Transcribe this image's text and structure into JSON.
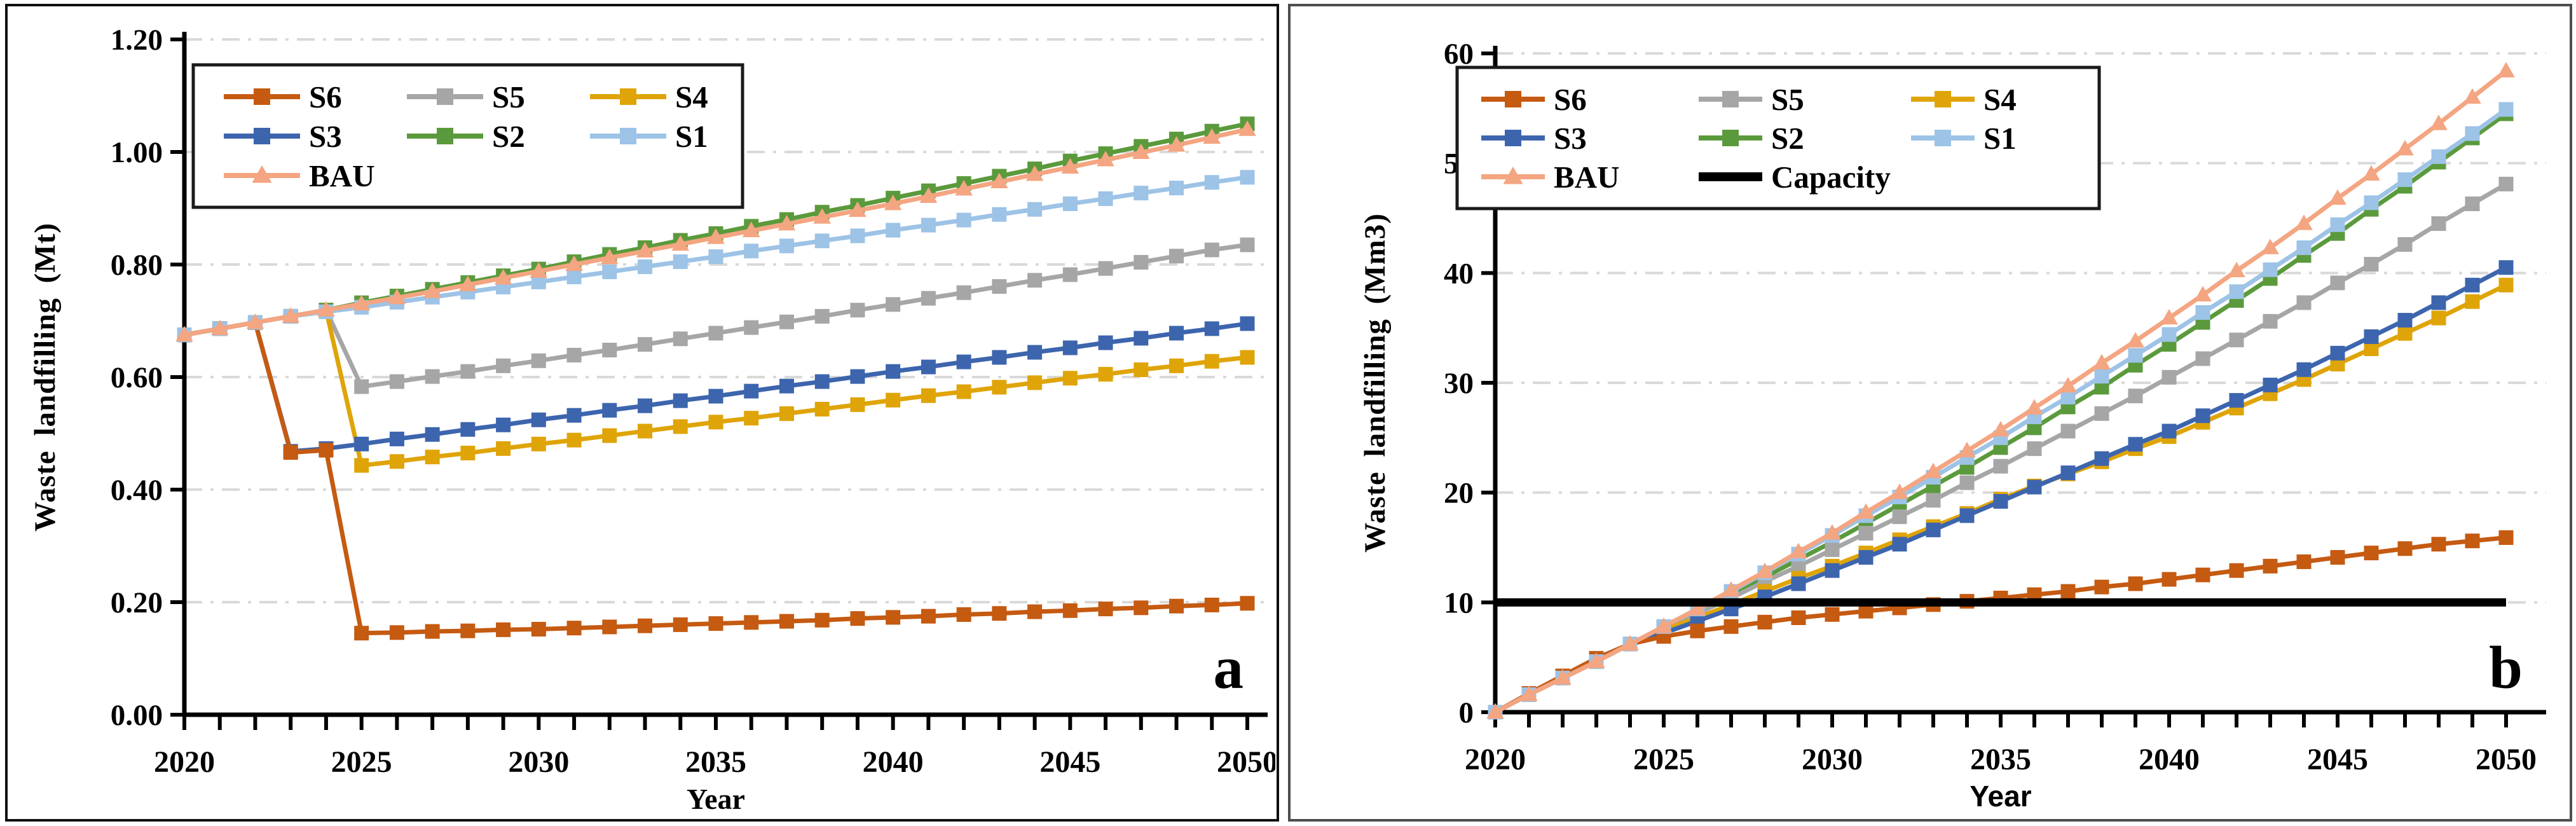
{
  "figure": {
    "background": "#ffffff",
    "grid_color": "#d9d9d9",
    "axis_color": "#000000"
  },
  "chart_data": [
    {
      "panel_label": "a",
      "type": "line",
      "xlabel": "Year",
      "ylabel": "Waste landfilling  (Mt)",
      "xlim": [
        2020,
        2050
      ],
      "ylim": [
        0,
        1.2
      ],
      "xticks_major": [
        2020,
        2025,
        2030,
        2035,
        2040,
        2045,
        2050
      ],
      "xtick_minor_step": 1,
      "yticks": [
        0,
        0.2,
        0.4,
        0.6,
        0.8,
        1.0,
        1.2
      ],
      "ytick_labels": [
        "0.00",
        "0.20",
        "0.40",
        "0.60",
        "0.80",
        "1.00",
        "1.20"
      ],
      "grid": "horizontal dash-dot",
      "legend_position": "top-left",
      "legend_columns": 3,
      "x": [
        2020,
        2021,
        2022,
        2023,
        2024,
        2025,
        2026,
        2027,
        2028,
        2029,
        2030,
        2031,
        2032,
        2033,
        2034,
        2035,
        2036,
        2037,
        2038,
        2039,
        2040,
        2041,
        2042,
        2043,
        2044,
        2045,
        2046,
        2047,
        2048,
        2049,
        2050
      ],
      "series": [
        {
          "name": "S6",
          "color": "#C55A11",
          "marker": "square",
          "values": [
            0.675,
            0.686,
            0.697,
            0.466,
            0.47,
            0.145,
            0.146,
            0.148,
            0.149,
            0.151,
            0.152,
            0.154,
            0.156,
            0.158,
            0.16,
            0.162,
            0.164,
            0.166,
            0.168,
            0.171,
            0.173,
            0.175,
            0.178,
            0.18,
            0.183,
            0.185,
            0.188,
            0.19,
            0.193,
            0.195,
            0.198
          ]
        },
        {
          "name": "S5",
          "color": "#A6A6A6",
          "marker": "square",
          "values": [
            0.675,
            0.686,
            0.697,
            0.708,
            0.719,
            0.583,
            0.592,
            0.601,
            0.61,
            0.62,
            0.629,
            0.639,
            0.648,
            0.658,
            0.668,
            0.678,
            0.688,
            0.698,
            0.708,
            0.719,
            0.729,
            0.74,
            0.75,
            0.761,
            0.772,
            0.782,
            0.793,
            0.804,
            0.815,
            0.826,
            0.835
          ]
        },
        {
          "name": "S4",
          "color": "#DFA408",
          "marker": "square",
          "values": [
            0.675,
            0.686,
            0.697,
            0.708,
            0.719,
            0.443,
            0.45,
            0.458,
            0.465,
            0.473,
            0.481,
            0.488,
            0.496,
            0.504,
            0.512,
            0.52,
            0.527,
            0.535,
            0.543,
            0.551,
            0.559,
            0.567,
            0.574,
            0.582,
            0.59,
            0.598,
            0.605,
            0.613,
            0.62,
            0.628,
            0.635
          ]
        },
        {
          "name": "S3",
          "color": "#3D65AE",
          "marker": "square",
          "values": [
            0.675,
            0.686,
            0.697,
            0.468,
            0.473,
            0.481,
            0.49,
            0.498,
            0.507,
            0.515,
            0.524,
            0.532,
            0.541,
            0.549,
            0.558,
            0.566,
            0.575,
            0.584,
            0.592,
            0.601,
            0.61,
            0.618,
            0.627,
            0.635,
            0.644,
            0.652,
            0.661,
            0.669,
            0.678,
            0.686,
            0.695
          ]
        },
        {
          "name": "S2",
          "color": "#5B9A3C",
          "marker": "square",
          "values": [
            0.675,
            0.686,
            0.697,
            0.708,
            0.719,
            0.732,
            0.744,
            0.756,
            0.768,
            0.78,
            0.792,
            0.805,
            0.818,
            0.83,
            0.843,
            0.855,
            0.868,
            0.88,
            0.893,
            0.905,
            0.918,
            0.931,
            0.944,
            0.957,
            0.97,
            0.984,
            0.997,
            1.01,
            1.023,
            1.037,
            1.05
          ]
        },
        {
          "name": "S1",
          "color": "#9DC3E6",
          "marker": "square",
          "values": [
            0.675,
            0.686,
            0.697,
            0.708,
            0.716,
            0.724,
            0.733,
            0.742,
            0.751,
            0.76,
            0.769,
            0.778,
            0.787,
            0.796,
            0.805,
            0.814,
            0.824,
            0.833,
            0.842,
            0.851,
            0.861,
            0.87,
            0.879,
            0.889,
            0.898,
            0.908,
            0.917,
            0.927,
            0.936,
            0.946,
            0.955
          ]
        },
        {
          "name": "BAU",
          "color": "#F4A581",
          "marker": "triangle",
          "values": [
            0.675,
            0.686,
            0.697,
            0.708,
            0.719,
            0.73,
            0.741,
            0.752,
            0.764,
            0.776,
            0.788,
            0.8,
            0.812,
            0.824,
            0.836,
            0.848,
            0.86,
            0.872,
            0.884,
            0.896,
            0.908,
            0.921,
            0.934,
            0.947,
            0.96,
            0.973,
            0.986,
            0.999,
            1.012,
            1.026,
            1.04
          ]
        }
      ],
      "draw_order": [
        "S5",
        "S4",
        "S3",
        "S6",
        "S2",
        "S1",
        "BAU"
      ]
    },
    {
      "panel_label": "b",
      "type": "line",
      "xlabel": "Year",
      "ylabel": "Waste landfilling (Mm3)",
      "xlim": [
        2020,
        2050
      ],
      "ylim": [
        0,
        60
      ],
      "xticks_major": [
        2020,
        2025,
        2030,
        2035,
        2040,
        2045,
        2050
      ],
      "xtick_minor_step": 1,
      "yticks": [
        0,
        10,
        20,
        30,
        40,
        50,
        60
      ],
      "ytick_labels": [
        "0",
        "10",
        "20",
        "30",
        "40",
        "50",
        "60"
      ],
      "grid": "horizontal dash-dot",
      "legend_position": "top-left",
      "legend_columns": 3,
      "x": [
        2020,
        2021,
        2022,
        2023,
        2024,
        2025,
        2026,
        2027,
        2028,
        2029,
        2030,
        2031,
        2032,
        2033,
        2034,
        2035,
        2036,
        2037,
        2038,
        2039,
        2040,
        2041,
        2042,
        2043,
        2044,
        2045,
        2046,
        2047,
        2048,
        2049,
        2050
      ],
      "series": [
        {
          "name": "S6",
          "color": "#C55A11",
          "marker": "square",
          "values": [
            0.0,
            1.7,
            3.3,
            4.9,
            6.2,
            6.9,
            7.4,
            7.8,
            8.2,
            8.6,
            8.9,
            9.2,
            9.5,
            9.8,
            10.1,
            10.4,
            10.7,
            11.0,
            11.4,
            11.7,
            12.1,
            12.5,
            12.9,
            13.3,
            13.7,
            14.1,
            14.5,
            14.9,
            15.3,
            15.6,
            15.9
          ]
        },
        {
          "name": "S5",
          "color": "#A6A6A6",
          "marker": "square",
          "values": [
            0.0,
            1.6,
            3.1,
            4.6,
            6.2,
            7.6,
            9.0,
            10.4,
            11.9,
            13.3,
            14.8,
            16.3,
            17.8,
            19.3,
            20.9,
            22.4,
            24.0,
            25.6,
            27.2,
            28.8,
            30.5,
            32.2,
            33.9,
            35.6,
            37.3,
            39.1,
            40.8,
            42.6,
            44.5,
            46.3,
            48.1
          ]
        },
        {
          "name": "S4",
          "color": "#DFA408",
          "marker": "square",
          "values": [
            0.0,
            1.7,
            3.3,
            4.9,
            6.2,
            7.5,
            8.6,
            9.8,
            11.0,
            12.2,
            13.3,
            14.5,
            15.7,
            16.9,
            18.1,
            19.4,
            20.6,
            21.7,
            22.8,
            24.0,
            25.1,
            26.4,
            27.7,
            29.0,
            30.3,
            31.7,
            33.1,
            34.5,
            35.9,
            37.4,
            38.9
          ]
        },
        {
          "name": "S3",
          "color": "#3D65AE",
          "marker": "square",
          "values": [
            0.0,
            1.7,
            3.3,
            4.9,
            6.2,
            7.2,
            8.3,
            9.4,
            10.5,
            11.7,
            12.9,
            14.1,
            15.3,
            16.6,
            17.9,
            19.2,
            20.5,
            21.8,
            23.1,
            24.4,
            25.6,
            27.0,
            28.4,
            29.8,
            31.2,
            32.7,
            34.2,
            35.7,
            37.3,
            38.9,
            40.5
          ]
        },
        {
          "name": "S2",
          "color": "#5B9A3C",
          "marker": "square",
          "values": [
            0.0,
            1.6,
            3.1,
            4.6,
            6.2,
            7.7,
            9.2,
            10.7,
            12.3,
            13.9,
            15.5,
            17.2,
            18.9,
            20.6,
            22.3,
            24.1,
            25.9,
            27.8,
            29.6,
            31.6,
            33.5,
            35.5,
            37.5,
            39.5,
            41.6,
            43.6,
            45.8,
            47.9,
            50.1,
            52.3,
            54.5
          ]
        },
        {
          "name": "S1",
          "color": "#9DC3E6",
          "marker": "square",
          "values": [
            0.0,
            1.6,
            3.1,
            4.6,
            6.2,
            7.8,
            9.4,
            11.0,
            12.7,
            14.4,
            16.1,
            17.9,
            19.6,
            21.4,
            23.2,
            25.0,
            26.9,
            28.7,
            30.6,
            32.5,
            34.4,
            36.4,
            38.3,
            40.3,
            42.3,
            44.4,
            46.4,
            48.5,
            50.6,
            52.7,
            54.9
          ]
        },
        {
          "name": "BAU",
          "color": "#F4A581",
          "marker": "triangle",
          "values": [
            0.0,
            1.6,
            3.1,
            4.6,
            6.2,
            7.8,
            9.4,
            11.1,
            12.8,
            14.6,
            16.3,
            18.2,
            20.0,
            21.9,
            23.8,
            25.7,
            27.7,
            29.7,
            31.8,
            33.8,
            35.9,
            38.0,
            40.2,
            42.3,
            44.5,
            46.8,
            49.0,
            51.3,
            53.6,
            56.0,
            58.4
          ]
        },
        {
          "name": "Capacity",
          "color": "#000000",
          "marker": "none",
          "values": [
            10,
            10,
            10,
            10,
            10,
            10,
            10,
            10,
            10,
            10,
            10,
            10,
            10,
            10,
            10,
            10,
            10,
            10,
            10,
            10,
            10,
            10,
            10,
            10,
            10,
            10,
            10,
            10,
            10,
            10,
            10
          ]
        }
      ],
      "draw_order": [
        "S2",
        "S5",
        "S4",
        "S3",
        "S6",
        "S1",
        "BAU",
        "Capacity"
      ]
    }
  ]
}
